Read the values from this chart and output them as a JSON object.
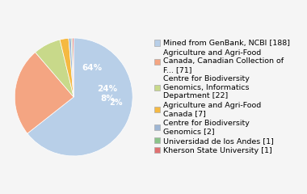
{
  "labels": [
    "Mined from GenBank, NCBI [188]",
    "Agriculture and Agri-Food\nCanada, Canadian Collection of\nF... [71]",
    "Centre for Biodiversity\nGenomics, Informatics\nDepartment [22]",
    "Agriculture and Agri-Food\nCanada [7]",
    "Centre for Biodiversity\nGenomics [2]",
    "Universidad de los Andes [1]",
    "Kherson State University [1]"
  ],
  "values": [
    188,
    71,
    22,
    7,
    2,
    1,
    1
  ],
  "colors": [
    "#b8cfe8",
    "#f4a582",
    "#c8d98a",
    "#f5b942",
    "#9eb6d4",
    "#8bc48a",
    "#e07070"
  ],
  "background_color": "#f5f5f5",
  "fontsize_legend": 6.8,
  "fontsize_pct": 7.5
}
